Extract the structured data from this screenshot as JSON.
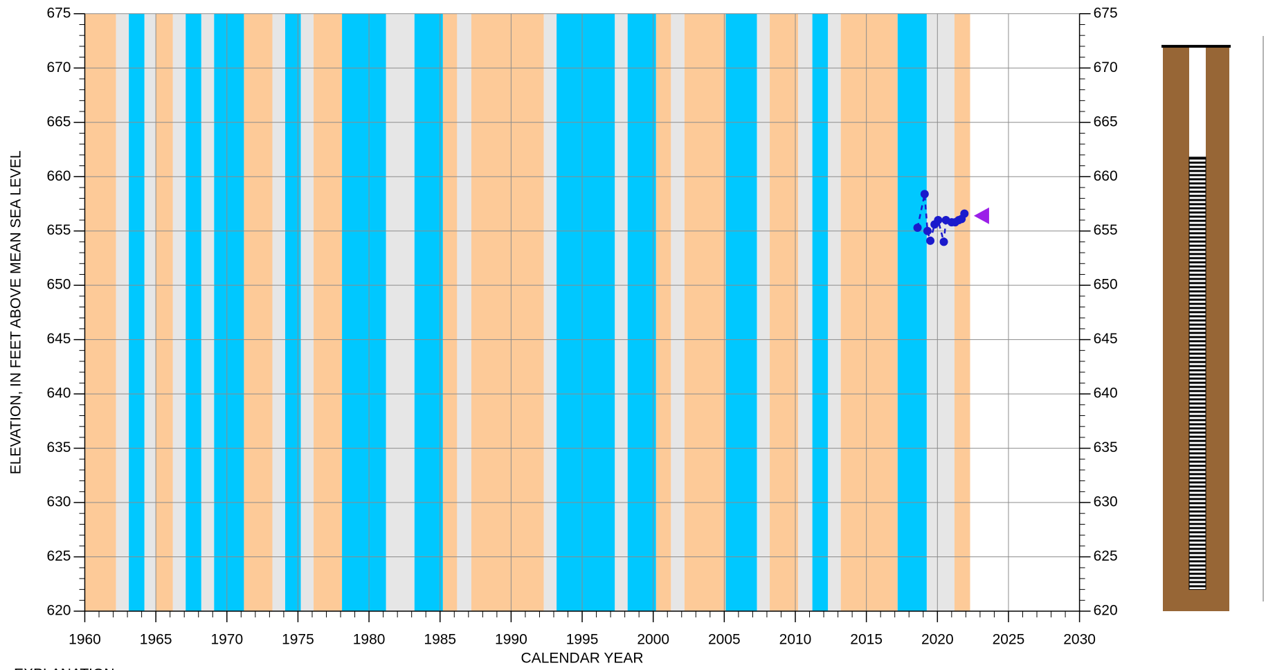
{
  "chart_data": {
    "type": "line",
    "ylabel": "ELEVATION, IN FEET ABOVE MEAN SEA LEVEL",
    "xlabel": "CALENDAR YEAR",
    "explanation": "EXPLANATION",
    "xlim": [
      1960,
      2030
    ],
    "xticks": [
      1960,
      1965,
      1970,
      1975,
      1980,
      1985,
      1990,
      1995,
      2000,
      2005,
      2010,
      2015,
      2020,
      2025,
      2030
    ],
    "xminor_step": 1,
    "ylim": [
      620,
      675
    ],
    "yticks": [
      620,
      625,
      630,
      635,
      640,
      645,
      650,
      655,
      660,
      665,
      670,
      675
    ],
    "yminor_step": 1,
    "grid": true,
    "bands": [
      {
        "start": 1960,
        "end": 1962.2,
        "color": "#fdca98"
      },
      {
        "start": 1962.2,
        "end": 1963.1,
        "color": "#e6e6e6"
      },
      {
        "start": 1963.1,
        "end": 1964.2,
        "color": "#00c8ff"
      },
      {
        "start": 1964.2,
        "end": 1965,
        "color": "#e6e6e6"
      },
      {
        "start": 1965,
        "end": 1966.2,
        "color": "#fdca98"
      },
      {
        "start": 1966.2,
        "end": 1967.1,
        "color": "#e6e6e6"
      },
      {
        "start": 1967.1,
        "end": 1968.2,
        "color": "#00c8ff"
      },
      {
        "start": 1968.2,
        "end": 1969.1,
        "color": "#e6e6e6"
      },
      {
        "start": 1969.1,
        "end": 1971.2,
        "color": "#00c8ff"
      },
      {
        "start": 1971.2,
        "end": 1973.2,
        "color": "#fdca98"
      },
      {
        "start": 1973.2,
        "end": 1974.1,
        "color": "#e6e6e6"
      },
      {
        "start": 1974.1,
        "end": 1975.2,
        "color": "#00c8ff"
      },
      {
        "start": 1975.2,
        "end": 1976.1,
        "color": "#e6e6e6"
      },
      {
        "start": 1976.1,
        "end": 1978.1,
        "color": "#fdca98"
      },
      {
        "start": 1978.1,
        "end": 1981.2,
        "color": "#00c8ff"
      },
      {
        "start": 1981.2,
        "end": 1983.2,
        "color": "#e6e6e6"
      },
      {
        "start": 1983.2,
        "end": 1985.2,
        "color": "#00c8ff"
      },
      {
        "start": 1985.2,
        "end": 1986.2,
        "color": "#fdca98"
      },
      {
        "start": 1986.2,
        "end": 1987.2,
        "color": "#e6e6e6"
      },
      {
        "start": 1987.2,
        "end": 1992.3,
        "color": "#fdca98"
      },
      {
        "start": 1992.3,
        "end": 1993.2,
        "color": "#e6e6e6"
      },
      {
        "start": 1993.2,
        "end": 1997.3,
        "color": "#00c8ff"
      },
      {
        "start": 1997.3,
        "end": 1998.2,
        "color": "#e6e6e6"
      },
      {
        "start": 1998.2,
        "end": 2000.2,
        "color": "#00c8ff"
      },
      {
        "start": 2000.2,
        "end": 2001.25,
        "color": "#fdca98"
      },
      {
        "start": 2001.25,
        "end": 2002.2,
        "color": "#e6e6e6"
      },
      {
        "start": 2002.2,
        "end": 2005.1,
        "color": "#fdca98"
      },
      {
        "start": 2005.1,
        "end": 2007.3,
        "color": "#00c8ff"
      },
      {
        "start": 2007.3,
        "end": 2008.2,
        "color": "#e6e6e6"
      },
      {
        "start": 2008.2,
        "end": 2010.2,
        "color": "#fdca98"
      },
      {
        "start": 2010.2,
        "end": 2011.2,
        "color": "#e6e6e6"
      },
      {
        "start": 2011.2,
        "end": 2012.3,
        "color": "#00c8ff"
      },
      {
        "start": 2012.3,
        "end": 2013.2,
        "color": "#e6e6e6"
      },
      {
        "start": 2013.2,
        "end": 2017.2,
        "color": "#fdca98"
      },
      {
        "start": 2017.2,
        "end": 2019.25,
        "color": "#00c8ff"
      },
      {
        "start": 2019.25,
        "end": 2021.2,
        "color": "#e6e6e6"
      },
      {
        "start": 2021.2,
        "end": 2022.3,
        "color": "#fdca98"
      }
    ],
    "series": [
      {
        "color": "#1a1acc",
        "marker": "circle",
        "line": "dashed",
        "x": [
          2018.6,
          2019.1,
          2019.3,
          2019.5,
          2019.8,
          2020.05,
          2020.45,
          2020.6,
          2021.0,
          2021.25,
          2021.5,
          2021.7,
          2021.9
        ],
        "values": [
          655.3,
          658.4,
          655.0,
          654.1,
          655.6,
          656.0,
          654.0,
          656.0,
          655.8,
          655.8,
          656.0,
          656.1,
          656.6
        ]
      },
      {
        "color": "#9b1fe8",
        "marker": "triangle",
        "line": "none",
        "x": [
          2023.1
        ],
        "values": [
          656.4
        ]
      }
    ],
    "well": {
      "land_surface": 672,
      "screen_top": 661.8,
      "screen_bottom": 622
    }
  }
}
